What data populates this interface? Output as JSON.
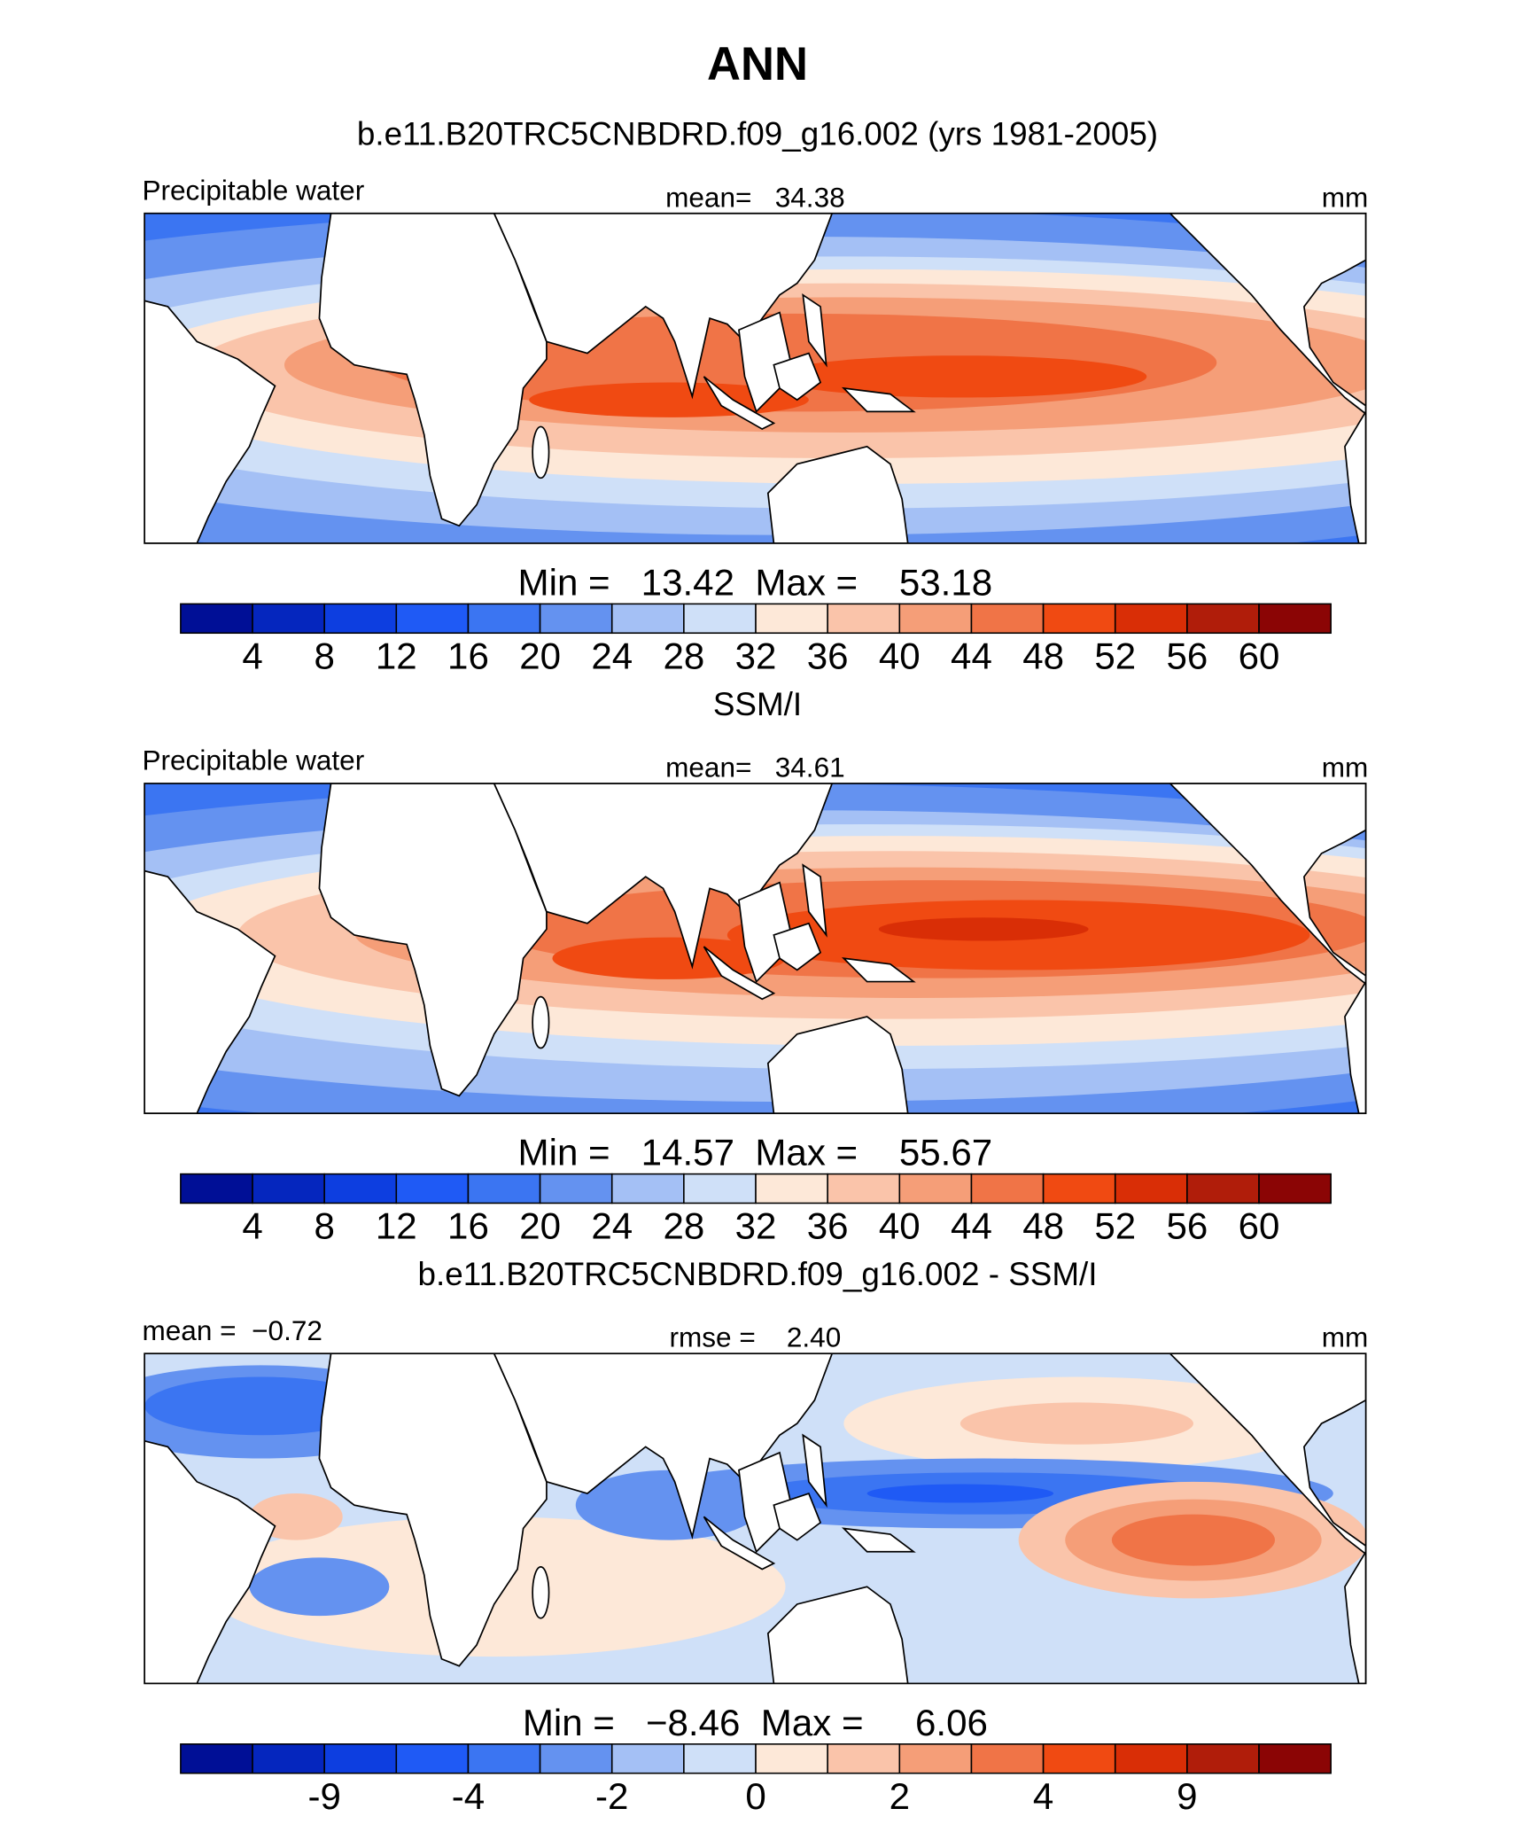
{
  "title": "ANN",
  "colormap": [
    "#000f96",
    "#0526be",
    "#0d3ee0",
    "#1f5af5",
    "#3b75f2",
    "#6492f0",
    "#a4c0f5",
    "#cfe0f8",
    "#fde8d8",
    "#fac4aa",
    "#f59e78",
    "#f07447",
    "#f04a12",
    "#d92e06",
    "#b01d0a",
    "#8b0505"
  ],
  "panels": [
    {
      "title": "b.e11.B20TRC5CNBDRD.f09_g16.002 (yrs 1981-2005)",
      "left_label": "Precipitable water",
      "center_label": "mean=   34.38",
      "units": "mm",
      "range_label": "Min =   13.42  Max =    53.18",
      "ticks": [
        4,
        8,
        12,
        16,
        20,
        24,
        28,
        32,
        36,
        40,
        44,
        48,
        52,
        56,
        60
      ]
    },
    {
      "title": "SSM/I",
      "left_label": "Precipitable water",
      "center_label": "mean=   34.61",
      "units": "mm",
      "range_label": "Min =   14.57  Max =    55.67",
      "ticks": [
        4,
        8,
        12,
        16,
        20,
        24,
        28,
        32,
        36,
        40,
        44,
        48,
        52,
        56,
        60
      ]
    },
    {
      "title": "b.e11.B20TRC5CNBDRD.f09_g16.002 - SSM/I",
      "left_label": "mean =  −0.72",
      "center_label": "rmse =    2.40",
      "units": "mm",
      "range_label": "Min =   −8.46  Max =     6.06",
      "ticks": [
        -9,
        -4,
        -2,
        0,
        2,
        4,
        9
      ]
    }
  ]
}
